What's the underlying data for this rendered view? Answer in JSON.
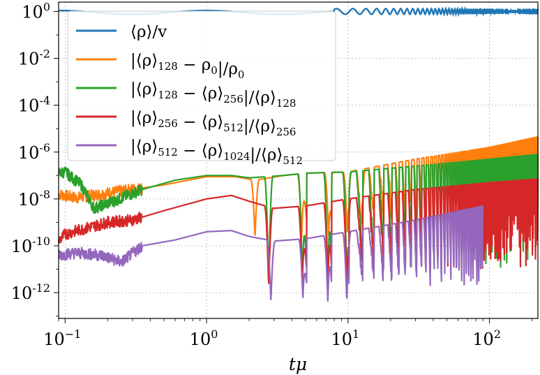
{
  "chart_data": {
    "type": "line",
    "xscale": "log",
    "yscale": "log",
    "xlim": [
      0.09,
      220
    ],
    "ylim_exponents": [
      -13.1,
      0.4
    ],
    "grid": true,
    "xlabel": "tμ",
    "ylabel": "",
    "x_ticks": [
      {
        "value": 0.1,
        "base": "10",
        "exp": "−1"
      },
      {
        "value": 1,
        "base": "10",
        "exp": "0"
      },
      {
        "value": 10,
        "base": "10",
        "exp": "1"
      },
      {
        "value": 100,
        "base": "10",
        "exp": "2"
      }
    ],
    "y_ticks": [
      {
        "value_exp": 0,
        "base": "10",
        "exp": "0"
      },
      {
        "value_exp": -2,
        "base": "10",
        "exp": "-2"
      },
      {
        "value_exp": -4,
        "base": "10",
        "exp": "-4"
      },
      {
        "value_exp": -6,
        "base": "10",
        "exp": "-6"
      },
      {
        "value_exp": -8,
        "base": "10",
        "exp": "-8"
      },
      {
        "value_exp": -10,
        "base": "10",
        "exp": "-10"
      },
      {
        "value_exp": -12,
        "base": "10",
        "exp": "-12"
      }
    ],
    "legend_location": "upper-left",
    "series": [
      {
        "name": "⟨ρ⟩/v",
        "legend_main": "⟨ρ⟩/v",
        "legend_parts": [
          [
            "⟨ρ⟩/",
            ""
          ],
          [
            "v",
            ""
          ]
        ],
        "color": "#1f77b4",
        "envelope": {
          "upper": [
            [
              0.09,
              0.1
            ],
            [
              0.3,
              0.08
            ],
            [
              2,
              0.06
            ],
            [
              10,
              0.12
            ],
            [
              220,
              0.12
            ]
          ],
          "lower": [
            [
              0.09,
              0.09
            ],
            [
              0.3,
              0.0
            ],
            [
              2,
              -0.12
            ],
            [
              10,
              -0.12
            ],
            [
              220,
              -0.12
            ]
          ]
        },
        "osc_start_x": 8
      },
      {
        "name": "|⟨ρ⟩128 − ρ0|/ρ0",
        "legend_parts": [
          [
            "|⟨ρ⟩",
            "128"
          ],
          [
            " − ρ",
            "0"
          ],
          [
            "|/ρ",
            "0"
          ]
        ],
        "color": "#ff7f0e",
        "upper_log10": [
          [
            0.09,
            -7.8
          ],
          [
            0.12,
            -7.95
          ],
          [
            0.2,
            -7.75
          ],
          [
            0.5,
            -7.4
          ],
          [
            1.0,
            -7.05
          ],
          [
            1.6,
            -7.05
          ],
          [
            2.2,
            -7.2
          ],
          [
            3.5,
            -7.0
          ],
          [
            5,
            -6.9
          ],
          [
            10,
            -6.85
          ],
          [
            30,
            -6.3
          ],
          [
            100,
            -5.8
          ],
          [
            220,
            -5.35
          ]
        ],
        "notches": [
          2.2,
          4.7,
          7.3,
          9.9,
          12.4
        ],
        "notch_depth_log10": -9.7
      },
      {
        "name": "|⟨ρ⟩128 − ⟨ρ⟩256|/⟨ρ⟩128",
        "legend_parts": [
          [
            "|⟨ρ⟩",
            "128"
          ],
          [
            " − ⟨ρ⟩",
            "256"
          ],
          [
            "|/⟨ρ⟩",
            "128"
          ]
        ],
        "color": "#2ca02c",
        "upper_log10": [
          [
            0.09,
            -6.9
          ],
          [
            0.1,
            -6.85
          ],
          [
            0.13,
            -7.4
          ],
          [
            0.16,
            -8.4
          ],
          [
            0.22,
            -8.1
          ],
          [
            0.35,
            -7.6
          ],
          [
            0.6,
            -7.2
          ],
          [
            1.0,
            -7.0
          ],
          [
            1.5,
            -7.0
          ],
          [
            2.0,
            -7.1
          ],
          [
            3.5,
            -7.0
          ],
          [
            5,
            -6.9
          ],
          [
            10,
            -6.85
          ],
          [
            30,
            -6.6
          ],
          [
            100,
            -6.3
          ],
          [
            220,
            -6.1
          ]
        ],
        "notches": [
          2.75,
          4.75,
          7.2,
          9.8
        ],
        "notch_depth_log10": -11.7
      },
      {
        "name": "|⟨ρ⟩256 − ⟨ρ⟩512|/⟨ρ⟩256",
        "legend_parts": [
          [
            "|⟨ρ⟩",
            "256"
          ],
          [
            " − ⟨ρ⟩",
            "512"
          ],
          [
            "|/⟨ρ⟩",
            "256"
          ]
        ],
        "color": "#d62728",
        "upper_log10": [
          [
            0.09,
            -9.8
          ],
          [
            0.1,
            -9.5
          ],
          [
            0.15,
            -9.2
          ],
          [
            0.2,
            -9.0
          ],
          [
            0.3,
            -8.9
          ],
          [
            0.5,
            -8.5
          ],
          [
            1.0,
            -8.0
          ],
          [
            1.5,
            -7.85
          ],
          [
            2.0,
            -8.1
          ],
          [
            3.0,
            -8.4
          ],
          [
            5,
            -8.3
          ],
          [
            10,
            -8.0
          ],
          [
            30,
            -7.6
          ],
          [
            100,
            -7.3
          ],
          [
            220,
            -7.15
          ]
        ],
        "notches": [
          2.75,
          4.75,
          7.2,
          9.8
        ],
        "notch_depth_log10": -11.8
      },
      {
        "name": "|⟨ρ⟩512 − ⟨ρ⟩1024|/⟨ρ⟩512",
        "legend_parts": [
          [
            "|⟨ρ⟩",
            "512"
          ],
          [
            " − ⟨ρ⟩",
            "1024"
          ],
          [
            "|/⟨ρ⟩",
            "512"
          ]
        ],
        "color": "#9467bd",
        "upper_log10": [
          [
            0.09,
            -10.4
          ],
          [
            0.12,
            -10.3
          ],
          [
            0.18,
            -10.4
          ],
          [
            0.25,
            -10.7
          ],
          [
            0.35,
            -10.0
          ],
          [
            0.6,
            -9.75
          ],
          [
            1.0,
            -9.4
          ],
          [
            1.5,
            -9.35
          ],
          [
            2.0,
            -9.6
          ],
          [
            3.0,
            -9.8
          ],
          [
            5,
            -9.7
          ],
          [
            10,
            -9.4
          ],
          [
            30,
            -8.9
          ],
          [
            90,
            -8.3
          ]
        ],
        "notches": [
          2.85,
          4.8,
          7.2,
          9.8
        ],
        "notch_depth_log10": -12.4,
        "end_x": 90
      }
    ]
  }
}
